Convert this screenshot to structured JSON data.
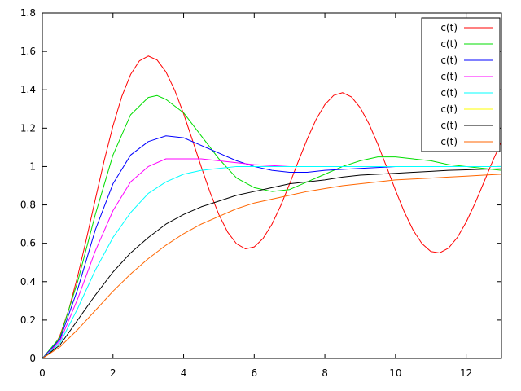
{
  "chart_data": {
    "type": "line",
    "title": "",
    "xlabel": "",
    "ylabel": "",
    "xlim": [
      0,
      13
    ],
    "ylim": [
      0,
      1.8
    ],
    "xticks": [
      0,
      2,
      4,
      6,
      8,
      10,
      12
    ],
    "yticks": [
      0,
      0.2,
      0.4,
      0.6,
      0.8,
      1,
      1.2,
      1.4,
      1.6,
      1.8
    ],
    "xtick_labels": [
      "0",
      "2",
      "4",
      "6",
      "8",
      "10",
      "12"
    ],
    "ytick_labels": [
      "0",
      "0.2",
      "0.4",
      "0.6",
      "0.8",
      "1",
      "1.2",
      "1.4",
      "1.6",
      "1.8"
    ],
    "grid": false,
    "legend_position": "top-right",
    "series": [
      {
        "name": "c(t)",
        "color": "#ff0000",
        "x": [
          0,
          0.25,
          0.5,
          0.75,
          1,
          1.25,
          1.5,
          1.75,
          2,
          2.25,
          2.5,
          2.75,
          3,
          3.25,
          3.5,
          3.75,
          4,
          4.25,
          4.5,
          4.75,
          5,
          5.25,
          5.5,
          5.75,
          6,
          6.25,
          6.5,
          6.75,
          7,
          7.25,
          7.5,
          7.75,
          8,
          8.25,
          8.5,
          8.75,
          9,
          9.25,
          9.5,
          9.75,
          10,
          10.25,
          10.5,
          10.75,
          11,
          11.25,
          11.5,
          11.75,
          12,
          12.25,
          12.5,
          12.75,
          13
        ],
        "y": [
          0,
          0.031,
          0.119,
          0.255,
          0.428,
          0.624,
          0.829,
          1.03,
          1.212,
          1.365,
          1.48,
          1.551,
          1.576,
          1.555,
          1.493,
          1.397,
          1.275,
          1.138,
          0.998,
          0.865,
          0.749,
          0.657,
          0.597,
          0.571,
          0.581,
          0.625,
          0.699,
          0.796,
          0.909,
          1.028,
          1.143,
          1.245,
          1.323,
          1.371,
          1.385,
          1.363,
          1.307,
          1.222,
          1.116,
          0.997,
          0.876,
          0.763,
          0.668,
          0.598,
          0.557,
          0.55,
          0.575,
          0.63,
          0.71,
          0.808,
          0.917,
          1.028,
          1.13
        ]
      },
      {
        "name": "c(t)",
        "color": "#00dd00",
        "x": [
          0,
          0.5,
          1,
          1.5,
          2,
          2.5,
          3,
          3.25,
          3.5,
          4,
          4.5,
          5,
          5.5,
          6,
          6.5,
          7,
          7.5,
          8,
          8.5,
          9,
          9.5,
          10,
          10.5,
          11,
          11.5,
          12,
          12.5,
          13
        ],
        "y": [
          0,
          0.11,
          0.4,
          0.75,
          1.06,
          1.27,
          1.36,
          1.37,
          1.35,
          1.28,
          1.16,
          1.04,
          0.94,
          0.89,
          0.87,
          0.88,
          0.92,
          0.96,
          1.0,
          1.03,
          1.05,
          1.05,
          1.04,
          1.03,
          1.01,
          1.0,
          0.99,
          0.98
        ]
      },
      {
        "name": "c(t)",
        "color": "#0000ff",
        "x": [
          0,
          0.5,
          1,
          1.5,
          2,
          2.5,
          3,
          3.5,
          4,
          4.5,
          5,
          5.5,
          6,
          6.5,
          7,
          7.5,
          8,
          9,
          10,
          11,
          12,
          13
        ],
        "y": [
          0,
          0.1,
          0.36,
          0.67,
          0.91,
          1.06,
          1.13,
          1.16,
          1.15,
          1.11,
          1.07,
          1.03,
          1.0,
          0.98,
          0.97,
          0.97,
          0.98,
          0.99,
          1.0,
          1.0,
          1.0,
          1.0
        ]
      },
      {
        "name": "c(t)",
        "color": "#ff00ff",
        "x": [
          0,
          0.5,
          1,
          1.5,
          2,
          2.5,
          3,
          3.5,
          4,
          4.5,
          5,
          6,
          7,
          8,
          9,
          10,
          11,
          12,
          13
        ],
        "y": [
          0,
          0.09,
          0.31,
          0.56,
          0.77,
          0.92,
          1.0,
          1.04,
          1.04,
          1.04,
          1.03,
          1.01,
          1.0,
          1.0,
          1.0,
          1.0,
          1.0,
          1.0,
          1.0
        ]
      },
      {
        "name": "c(t)",
        "color": "#00ffff",
        "x": [
          0,
          0.5,
          1,
          1.5,
          2,
          2.5,
          3,
          3.5,
          4,
          4.5,
          5,
          5.5,
          6,
          7,
          8,
          9,
          10,
          11,
          12,
          13
        ],
        "y": [
          0,
          0.08,
          0.26,
          0.46,
          0.63,
          0.76,
          0.86,
          0.92,
          0.96,
          0.98,
          0.99,
          1.0,
          1.0,
          1.0,
          1.0,
          1.0,
          1.0,
          1.0,
          1.0,
          1.0
        ]
      },
      {
        "name": "c(t)",
        "color": "#ffff00",
        "x": [],
        "y": []
      },
      {
        "name": "c(t)",
        "color": "#000000",
        "x": [
          0,
          0.5,
          1,
          1.5,
          2,
          2.5,
          3,
          3.5,
          4,
          4.5,
          5,
          5.5,
          6,
          6.5,
          7,
          7.5,
          8,
          8.5,
          9,
          9.5,
          10,
          10.5,
          11,
          11.5,
          12,
          12.5,
          13
        ],
        "y": [
          0,
          0.07,
          0.2,
          0.33,
          0.45,
          0.55,
          0.63,
          0.7,
          0.75,
          0.79,
          0.82,
          0.85,
          0.87,
          0.89,
          0.91,
          0.92,
          0.93,
          0.945,
          0.955,
          0.96,
          0.965,
          0.97,
          0.975,
          0.98,
          0.983,
          0.986,
          0.988
        ]
      },
      {
        "name": "c(t)",
        "color": "#ff6600",
        "x": [
          0,
          0.5,
          1,
          1.5,
          2,
          2.5,
          3,
          3.5,
          4,
          4.5,
          5,
          5.5,
          6,
          6.5,
          7,
          7.5,
          8,
          8.5,
          9,
          9.5,
          10,
          10.5,
          11,
          11.5,
          12,
          12.5,
          13
        ],
        "y": [
          0,
          0.06,
          0.15,
          0.25,
          0.35,
          0.44,
          0.52,
          0.59,
          0.65,
          0.7,
          0.74,
          0.78,
          0.81,
          0.83,
          0.85,
          0.87,
          0.885,
          0.9,
          0.91,
          0.92,
          0.93,
          0.935,
          0.94,
          0.945,
          0.95,
          0.955,
          0.96
        ]
      }
    ]
  }
}
